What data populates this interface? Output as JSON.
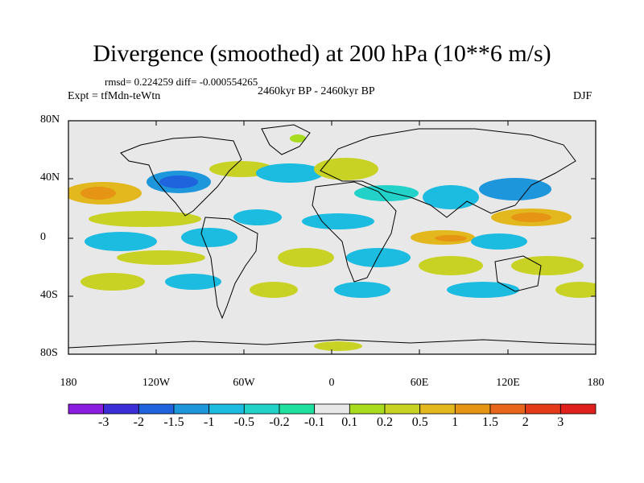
{
  "title": "Divergence (smoothed) at 200 hPa (10**6 m/s)",
  "stats": "rmsd= 0.224259 diff= -0.000554265",
  "expt": "Expt = tfMdn-teWtn",
  "period": "2460kyr BP - 2460kyr BP",
  "season": "DJF",
  "lat_labels": [
    "80N",
    "40N",
    "0",
    "40S",
    "80S"
  ],
  "lon_labels": [
    "180",
    "120W",
    "60W",
    "0",
    "60E",
    "120E",
    "180"
  ],
  "colorbar": {
    "labels": [
      "-3",
      "-2",
      "-1.5",
      "-1",
      "-0.5",
      "-0.2",
      "-0.1",
      "0.1",
      "0.2",
      "0.5",
      "1",
      "1.5",
      "2",
      "3"
    ],
    "colors": [
      "#8a1de0",
      "#3b2ed6",
      "#1f63dd",
      "#1d96dc",
      "#1cbbe0",
      "#22d2c8",
      "#20e0a0",
      "#e8e8e8",
      "#a8dc1e",
      "#c8d224",
      "#e2b81e",
      "#e69414",
      "#e8661c",
      "#e43a18",
      "#e0201c"
    ]
  },
  "map_colors": {
    "background": "#e8e8e8",
    "coast": "#000000"
  }
}
